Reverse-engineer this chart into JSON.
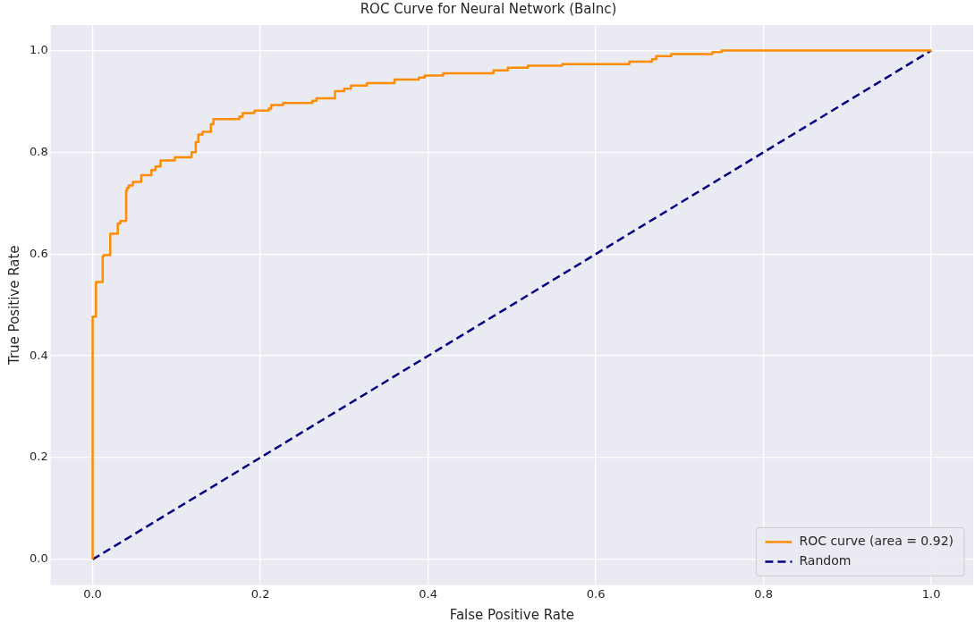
{
  "chart_data": {
    "type": "step",
    "title": "ROC Curve for Neural Network (Balnc)",
    "xlabel": "False Positive Rate",
    "ylabel": "True Positive Rate",
    "series": [
      {
        "name": "ROC curve (area = 0.92)",
        "color": "#ff8c00",
        "line_style": "solid",
        "x": [
          0,
          0,
          0.004,
          0.012,
          0.013,
          0.021,
          0.03,
          0.033,
          0.04,
          0.041,
          0.043,
          0.048,
          0.058,
          0.07,
          0.075,
          0.081,
          0.098,
          0.118,
          0.123,
          0.126,
          0.131,
          0.141,
          0.144,
          0.175,
          0.179,
          0.193,
          0.21,
          0.213,
          0.227,
          0.262,
          0.267,
          0.289,
          0.3,
          0.308,
          0.327,
          0.36,
          0.389,
          0.396,
          0.418,
          0.478,
          0.495,
          0.519,
          0.56,
          0.64,
          0.667,
          0.672,
          0.69,
          0.739,
          0.75,
          0.767,
          1
        ],
        "values": [
          0,
          0.4,
          0.477,
          0.545,
          0.595,
          0.598,
          0.64,
          0.66,
          0.665,
          0.725,
          0.73,
          0.735,
          0.742,
          0.755,
          0.765,
          0.772,
          0.784,
          0.79,
          0.8,
          0.82,
          0.835,
          0.84,
          0.855,
          0.865,
          0.87,
          0.877,
          0.882,
          0.886,
          0.893,
          0.897,
          0.901,
          0.906,
          0.92,
          0.925,
          0.931,
          0.936,
          0.943,
          0.947,
          0.951,
          0.955,
          0.961,
          0.966,
          0.97,
          0.973,
          0.978,
          0.983,
          0.989,
          0.993,
          0.997,
          1.0,
          1.0
        ]
      },
      {
        "name": "Random",
        "type": "line",
        "color": "#000080",
        "line_style": "dashed",
        "x": [
          0,
          1
        ],
        "values": [
          0,
          1
        ]
      }
    ],
    "xlim": [
      -0.05,
      1.05
    ],
    "ylim": [
      -0.05,
      1.05
    ],
    "xticks": [
      {
        "value": 0,
        "label": "0.0"
      },
      {
        "value": 0.2,
        "label": "0.2"
      },
      {
        "value": 0.4,
        "label": "0.4"
      },
      {
        "value": 0.6,
        "label": "0.6"
      },
      {
        "value": 0.8,
        "label": "0.8"
      },
      {
        "value": 1,
        "label": "1.0"
      }
    ],
    "yticks": [
      {
        "value": 0,
        "label": "0.0"
      },
      {
        "value": 0.2,
        "label": "0.2"
      },
      {
        "value": 0.4,
        "label": "0.4"
      },
      {
        "value": 0.6,
        "label": "0.6"
      },
      {
        "value": 0.8,
        "label": "0.8"
      },
      {
        "value": 1,
        "label": "1.0"
      }
    ],
    "grid": true,
    "legend": "bottom right",
    "marker": "none"
  }
}
